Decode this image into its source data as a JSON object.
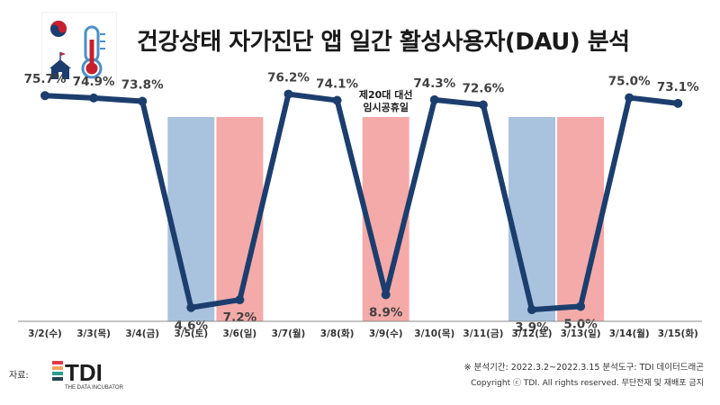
{
  "title": "건강상태 자가진단 앱 일간 활성사용자(DAU) 분석",
  "source_label": "자료:",
  "logo": {
    "text": "TDI",
    "subtext": "THE DATA INCUBATOR"
  },
  "notes": {
    "period": "※ 분석기간: 2022.3.2~2022.3.15  분석도구: TDI 데이터드래곤",
    "copyright": "Copyright ⓒ TDI. All rights reserved. 무단전재 및 재배포 금지"
  },
  "colors": {
    "line": "#1c3e6e",
    "saturday_band": "#a9c2de",
    "sunday_band": "#f4aaa9",
    "holiday_band": "#f4aaa9",
    "label": "#404040"
  },
  "chart_data": {
    "type": "line",
    "categories": [
      "3/2(수)",
      "3/3(목)",
      "3/4(금)",
      "3/5(토)",
      "3/6(일)",
      "3/7(월)",
      "3/8(화)",
      "3/9(수)",
      "3/10(목)",
      "3/11(금)",
      "3/12(토)",
      "3/13(일)",
      "3/14(월)",
      "3/15(화)"
    ],
    "values": [
      75.7,
      74.9,
      73.8,
      4.6,
      7.2,
      76.2,
      74.1,
      8.9,
      74.3,
      72.6,
      3.9,
      5.0,
      75.0,
      73.1
    ],
    "value_labels": [
      "75.7%",
      "74.9%",
      "73.8%",
      "4.6%",
      "7.2%",
      "76.2%",
      "74.1%",
      "8.9%",
      "74.3%",
      "72.6%",
      "3.9%",
      "5.0%",
      "75.0%",
      "73.1%"
    ],
    "unit": "%",
    "ylim": [
      0,
      80
    ],
    "grid": false,
    "highlight_bands": [
      {
        "category": "3/5(토)",
        "kind": "saturday"
      },
      {
        "category": "3/6(일)",
        "kind": "sunday"
      },
      {
        "category": "3/9(수)",
        "kind": "holiday",
        "label_lines": [
          "제20대 대선",
          "임시공휴일"
        ]
      },
      {
        "category": "3/12(토)",
        "kind": "saturday"
      },
      {
        "category": "3/13(일)",
        "kind": "sunday"
      }
    ]
  }
}
